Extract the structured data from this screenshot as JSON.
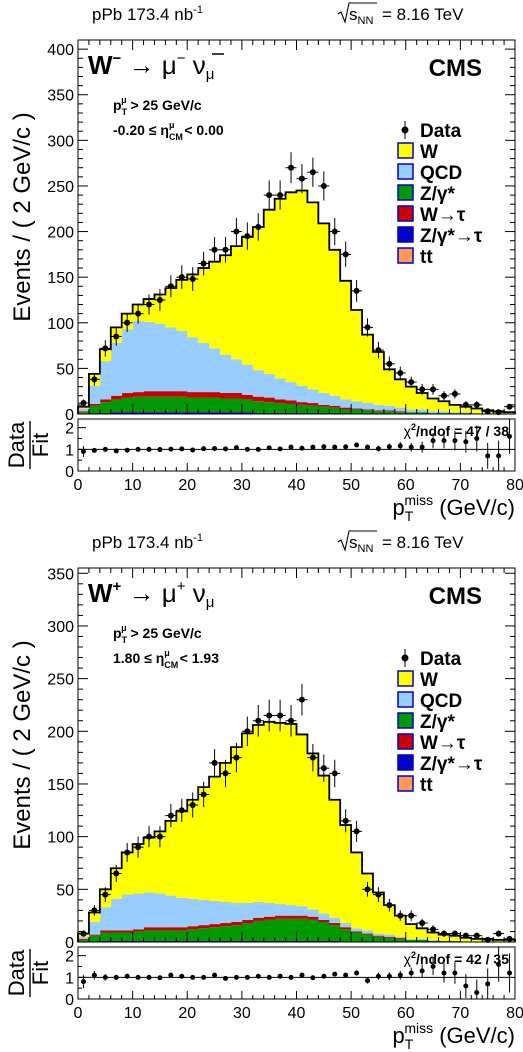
{
  "chart_data": [
    {
      "type": "bar",
      "header_left": "pPb 173.4 nb",
      "header_left_sup": "-1",
      "header_right": "= 8.16 TeV",
      "header_root_label": "s",
      "header_root_sub": "NN",
      "process_title": "W⁻ → μ⁻ ν̄μ",
      "cms_label": "CMS",
      "cut_pt": "> 25 GeV/c",
      "cut_eta": "-0.20 ≤ η_CM^μ < 0.00",
      "cut_eta_low": "-0.20",
      "cut_eta_high": "< 0.00",
      "ylabel": "Events / ( 2 GeV/c )",
      "xlabel": "p_T^miss (GeV/c)",
      "ratio_ylabel_num": "Data",
      "ratio_ylabel_den": "Fit",
      "chi2_label": "χ²/ndof = 47 / 38",
      "chi2_text": "/ndof = 47 / 38",
      "xlim": [
        0,
        80
      ],
      "ylim": [
        0,
        410
      ],
      "ratio_ylim": [
        0,
        2.4
      ],
      "x_ticks": [
        0,
        10,
        20,
        30,
        40,
        50,
        60,
        70,
        80
      ],
      "y_ticks": [
        0,
        50,
        100,
        150,
        200,
        250,
        300,
        350,
        400
      ],
      "ratio_ticks": [
        0,
        1,
        2
      ],
      "legend_position": "right",
      "legend": [
        {
          "name": "Data",
          "marker": "point"
        },
        {
          "name": "W",
          "color": "#ffff00"
        },
        {
          "name": "QCD",
          "color": "#99ccff"
        },
        {
          "name": "Z/γ*",
          "color": "#009900"
        },
        {
          "name": "W→τ",
          "color": "#cc0000"
        },
        {
          "name": "Z/γ*→τ",
          "color": "#0000cc"
        },
        {
          "name": "tt",
          "color": "#ff9955"
        }
      ],
      "bin_edges_step": 2,
      "series": [
        {
          "name": "QCD",
          "values": [
            3,
            20,
            42,
            58,
            70,
            78,
            76,
            74,
            70,
            66,
            60,
            54,
            48,
            42,
            37,
            33,
            29,
            26,
            23,
            20,
            18,
            15,
            13,
            11,
            9,
            8,
            7,
            6,
            5,
            4,
            3,
            3,
            2,
            2,
            1,
            1,
            1,
            1,
            0,
            0
          ]
        },
        {
          "name": "Z/γ*",
          "values": [
            2,
            8,
            12,
            14,
            16,
            17,
            17,
            17,
            17,
            17,
            16,
            16,
            16,
            15,
            15,
            14,
            13,
            12,
            11,
            10,
            9,
            8,
            7,
            6,
            5,
            5,
            4,
            3,
            3,
            2,
            2,
            2,
            1,
            1,
            1,
            1,
            0,
            0,
            0,
            0
          ]
        },
        {
          "name": "W→τ",
          "values": [
            1,
            2,
            3,
            4,
            5,
            5,
            6,
            6,
            6,
            6,
            6,
            6,
            6,
            6,
            6,
            5,
            5,
            5,
            4,
            4,
            3,
            3,
            2,
            2,
            2,
            1,
            1,
            1,
            1,
            1,
            0,
            0,
            0,
            0,
            0,
            0,
            0,
            0,
            0,
            0
          ]
        },
        {
          "name": "Z/γ*→τ",
          "values": [
            0,
            1,
            1,
            2,
            2,
            2,
            2,
            2,
            2,
            2,
            2,
            2,
            2,
            2,
            2,
            2,
            1,
            1,
            1,
            1,
            1,
            1,
            1,
            1,
            0,
            0,
            0,
            0,
            0,
            0,
            0,
            0,
            0,
            0,
            0,
            0,
            0,
            0,
            0,
            0
          ]
        },
        {
          "name": "tt",
          "values": [
            0,
            0,
            0,
            0,
            0,
            0,
            0,
            0,
            0,
            0,
            0,
            0,
            0,
            0,
            0,
            0,
            0,
            0,
            0,
            0,
            0,
            0,
            0,
            0,
            0,
            0,
            0,
            0,
            0,
            0,
            0,
            0,
            0,
            0,
            0,
            0,
            0,
            0,
            0,
            0
          ]
        },
        {
          "name": "W",
          "values": [
            2,
            13,
            13,
            17,
            17,
            18,
            25,
            32,
            43,
            56,
            69,
            82,
            95,
            109,
            124,
            140,
            157,
            180,
            197,
            208,
            214,
            205,
            186,
            160,
            130,
            100,
            75,
            58,
            40,
            31,
            25,
            18,
            14,
            11,
            8,
            6,
            5,
            3,
            3,
            2
          ]
        }
      ],
      "total": [
        8,
        44,
        71,
        95,
        110,
        120,
        126,
        131,
        138,
        147,
        153,
        160,
        167,
        174,
        184,
        194,
        205,
        224,
        236,
        243,
        245,
        232,
        209,
        180,
        146,
        114,
        87,
        68,
        49,
        38,
        30,
        23,
        17,
        14,
        10,
        8,
        6,
        4,
        3,
        2
      ],
      "data_points": [
        12,
        38,
        72,
        85,
        100,
        110,
        120,
        125,
        140,
        150,
        148,
        165,
        180,
        180,
        200,
        195,
        205,
        240,
        240,
        270,
        258,
        265,
        250,
        200,
        175,
        135,
        95,
        70,
        55,
        45,
        35,
        27,
        27,
        20,
        22,
        10,
        10,
        3,
        2,
        8
      ],
      "data_errors": [
        4,
        7,
        9,
        10,
        10,
        11,
        11,
        12,
        12,
        13,
        13,
        13,
        14,
        14,
        15,
        15,
        15,
        16,
        16,
        17,
        16,
        16,
        16,
        15,
        14,
        12,
        10,
        9,
        8,
        7,
        6,
        6,
        6,
        5,
        5,
        4,
        4,
        2,
        2,
        3
      ],
      "ratio_points": [
        0.9,
        0.95,
        1.0,
        0.93,
        0.96,
        1.0,
        1.0,
        0.99,
        1.01,
        1.02,
        0.97,
        1.03,
        1.04,
        1.02,
        1.08,
        1.0,
        1.0,
        1.07,
        1.02,
        1.1,
        1.05,
        1.1,
        1.12,
        1.1,
        1.12,
        1.2,
        1.1,
        1.03,
        1.12,
        1.16,
        1.1,
        1.1,
        1.4,
        1.4,
        1.4,
        1.35,
        1.5,
        0.7,
        0.7,
        1.6
      ],
      "ratio_errors": [
        0.25,
        0.1,
        0.1,
        0.1,
        0.08,
        0.08,
        0.08,
        0.08,
        0.08,
        0.08,
        0.08,
        0.08,
        0.08,
        0.08,
        0.08,
        0.08,
        0.07,
        0.07,
        0.07,
        0.07,
        0.07,
        0.07,
        0.07,
        0.08,
        0.09,
        0.1,
        0.12,
        0.13,
        0.15,
        0.18,
        0.2,
        0.25,
        0.35,
        0.35,
        0.45,
        0.5,
        0.6,
        0.6,
        0.7,
        0.8
      ]
    },
    {
      "type": "bar",
      "header_left": "pPb 173.4 nb",
      "header_left_sup": "-1",
      "header_right": "= 8.16 TeV",
      "header_root_label": "s",
      "header_root_sub": "NN",
      "process_title": "W⁺ → μ⁺ νμ",
      "cms_label": "CMS",
      "cut_pt": "> 25 GeV/c",
      "cut_eta": "1.80 ≤ η_CM^μ < 1.93",
      "cut_eta_low": "1.80",
      "cut_eta_high": "< 1.93",
      "ylabel": "Events / ( 2 GeV/c )",
      "xlabel": "p_T^miss (GeV/c)",
      "ratio_ylabel_num": "Data",
      "ratio_ylabel_den": "Fit",
      "chi2_label": "χ²/ndof = 42 / 35",
      "chi2_text": "/ndof = 42 / 35",
      "xlim": [
        0,
        80
      ],
      "ylim": [
        0,
        355
      ],
      "ratio_ylim": [
        0,
        2.4
      ],
      "x_ticks": [
        0,
        10,
        20,
        30,
        40,
        50,
        60,
        70,
        80
      ],
      "y_ticks": [
        0,
        50,
        100,
        150,
        200,
        250,
        300,
        350
      ],
      "ratio_ticks": [
        0,
        1,
        2
      ],
      "legend_position": "right",
      "legend": [
        {
          "name": "Data",
          "marker": "point"
        },
        {
          "name": "W",
          "color": "#ffff00"
        },
        {
          "name": "QCD",
          "color": "#99ccff"
        },
        {
          "name": "Z/γ*",
          "color": "#009900"
        },
        {
          "name": "W→τ",
          "color": "#cc0000"
        },
        {
          "name": "Z/γ*→τ",
          "color": "#0000cc"
        },
        {
          "name": "tt",
          "color": "#ff9955"
        }
      ],
      "bin_edges_step": 2,
      "series": [
        {
          "name": "QCD",
          "values": [
            2,
            12,
            22,
            30,
            34,
            34,
            33,
            32,
            30,
            28,
            26,
            24,
            22,
            20,
            18,
            16,
            15,
            13,
            11,
            10,
            9,
            7,
            6,
            5,
            4,
            3,
            3,
            2,
            2,
            1,
            1,
            1,
            1,
            0,
            0,
            0,
            0,
            0,
            0,
            0
          ]
        },
        {
          "name": "Z/γ*",
          "values": [
            2,
            6,
            8,
            8,
            8,
            9,
            10,
            10,
            10,
            10,
            11,
            12,
            13,
            14,
            15,
            17,
            19,
            20,
            21,
            21,
            21,
            20,
            18,
            15,
            12,
            9,
            7,
            5,
            4,
            3,
            2,
            2,
            1,
            1,
            1,
            0,
            0,
            0,
            0,
            0
          ]
        },
        {
          "name": "W→τ",
          "values": [
            1,
            1,
            2,
            2,
            2,
            2,
            3,
            3,
            3,
            3,
            3,
            3,
            3,
            3,
            3,
            3,
            3,
            3,
            3,
            3,
            3,
            3,
            2,
            2,
            2,
            1,
            1,
            1,
            1,
            1,
            0,
            0,
            0,
            0,
            0,
            0,
            0,
            0,
            0,
            0
          ]
        },
        {
          "name": "Z/γ*→τ",
          "values": [
            0,
            0,
            1,
            1,
            1,
            1,
            1,
            1,
            1,
            1,
            1,
            1,
            1,
            1,
            1,
            1,
            1,
            1,
            1,
            1,
            1,
            1,
            1,
            1,
            0,
            0,
            0,
            0,
            0,
            0,
            0,
            0,
            0,
            0,
            0,
            0,
            0,
            0,
            0,
            0
          ]
        },
        {
          "name": "tt",
          "values": [
            0,
            0,
            0,
            0,
            0,
            0,
            0,
            0,
            0,
            0,
            0,
            0,
            0,
            0,
            0,
            0,
            0,
            0,
            0,
            0,
            0,
            0,
            0,
            0,
            0,
            0,
            0,
            0,
            0,
            0,
            0,
            0,
            0,
            0,
            0,
            0,
            0,
            0,
            0,
            0
          ]
        },
        {
          "name": "W",
          "values": [
            3,
            9,
            17,
            29,
            40,
            47,
            52,
            59,
            71,
            82,
            94,
            107,
            118,
            132,
            148,
            161,
            168,
            172,
            172,
            172,
            163,
            148,
            131,
            112,
            93,
            72,
            54,
            39,
            28,
            20,
            14,
            10,
            7,
            6,
            5,
            4,
            3,
            3,
            2,
            2
          ]
        }
      ],
      "total": [
        8,
        28,
        50,
        70,
        85,
        93,
        99,
        105,
        115,
        124,
        135,
        147,
        157,
        170,
        185,
        198,
        206,
        209,
        208,
        207,
        197,
        179,
        158,
        135,
        111,
        85,
        65,
        47,
        35,
        25,
        17,
        13,
        9,
        7,
        6,
        4,
        3,
        3,
        2,
        2
      ],
      "data_points": [
        8,
        30,
        45,
        65,
        85,
        90,
        100,
        100,
        120,
        125,
        130,
        140,
        170,
        160,
        175,
        200,
        210,
        215,
        215,
        210,
        230,
        175,
        165,
        160,
        115,
        105,
        50,
        45,
        35,
        25,
        25,
        18,
        12,
        8,
        8,
        6,
        6,
        2,
        8,
        3
      ],
      "data_errors": [
        3,
        5,
        7,
        8,
        9,
        10,
        10,
        10,
        11,
        11,
        12,
        12,
        13,
        13,
        14,
        14,
        15,
        15,
        15,
        15,
        15,
        13,
        13,
        13,
        11,
        10,
        7,
        7,
        6,
        5,
        5,
        4,
        4,
        3,
        3,
        2,
        2,
        1,
        3,
        2
      ],
      "ratio_points": [
        0.8,
        1.1,
        1.0,
        1.0,
        1.05,
        1.0,
        1.0,
        0.98,
        1.1,
        1.05,
        1.0,
        1.0,
        1.1,
        0.95,
        1.0,
        1.0,
        1.05,
        1.0,
        1.05,
        1.0,
        1.1,
        0.98,
        1.05,
        1.15,
        1.1,
        1.2,
        0.85,
        1.05,
        1.05,
        1.1,
        1.2,
        1.3,
        1.5,
        1.2,
        1.2,
        0.6,
        0.3,
        0.7,
        1.6,
        1.2
      ],
      "ratio_errors": [
        0.3,
        0.2,
        0.15,
        0.12,
        0.1,
        0.1,
        0.1,
        0.1,
        0.1,
        0.1,
        0.1,
        0.09,
        0.09,
        0.09,
        0.09,
        0.09,
        0.09,
        0.09,
        0.09,
        0.09,
        0.09,
        0.09,
        0.09,
        0.1,
        0.1,
        0.12,
        0.14,
        0.16,
        0.18,
        0.2,
        0.25,
        0.3,
        0.4,
        0.45,
        0.5,
        0.55,
        0.6,
        0.7,
        0.8,
        0.9
      ]
    }
  ],
  "colors": {
    "W": "#ffff00",
    "QCD": "#99ccff",
    "Z": "#009900",
    "Wtau": "#cc0000",
    "Ztau": "#0000cc",
    "tt": "#ff9955"
  }
}
